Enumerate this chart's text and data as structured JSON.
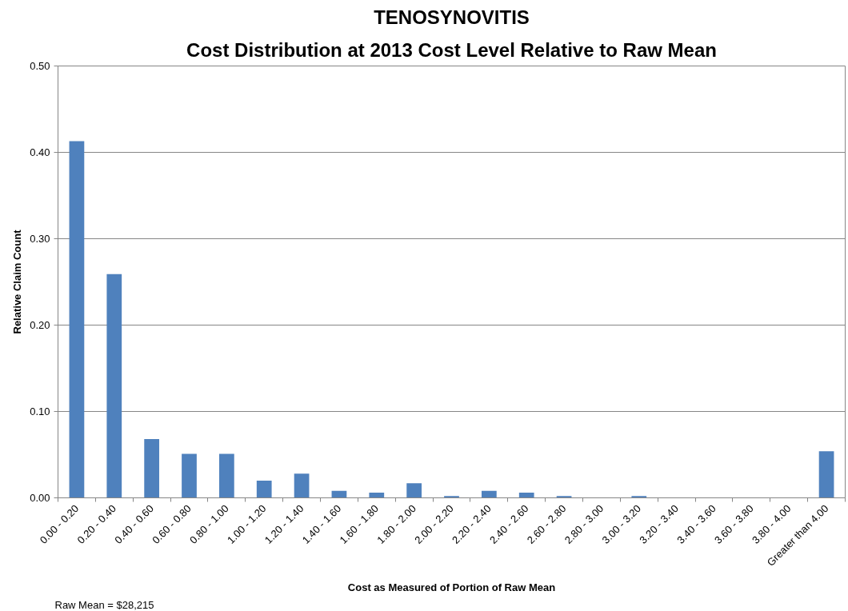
{
  "chart_data": {
    "type": "bar",
    "title": "TENOSYNOVITIS",
    "subtitle": "Cost Distribution at 2013 Cost Level Relative to Raw Mean",
    "xlabel": "Cost as Measured of Portion of Raw Mean",
    "ylabel": "Relative Claim Count",
    "annotations": [
      "Raw Mean = $28,215"
    ],
    "categories": [
      "0.00 - 0.20",
      "0.20 - 0.40",
      "0.40 - 0.60",
      "0.60 - 0.80",
      "0.80 - 1.00",
      "1.00 - 1.20",
      "1.20 - 1.40",
      "1.40 - 1.60",
      "1.60 - 1.80",
      "1.80 - 2.00",
      "2.00 - 2.20",
      "2.20 - 2.40",
      "2.40 - 2.60",
      "2.60 - 2.80",
      "2.80 - 3.00",
      "3.00 - 3.20",
      "3.20 - 3.40",
      "3.40 - 3.60",
      "3.60 - 3.80",
      "3.80 - 4.00",
      "Greater than 4.00"
    ],
    "values": [
      0.413,
      0.259,
      0.068,
      0.051,
      0.051,
      0.02,
      0.028,
      0.008,
      0.006,
      0.017,
      0.002,
      0.008,
      0.006,
      0.002,
      0,
      0.002,
      0,
      0,
      0,
      0,
      0.054
    ],
    "color": "#4f81bd",
    "ylim": [
      0,
      0.5
    ],
    "yticks": [
      {
        "value": 0,
        "label": "0.00"
      },
      {
        "value": 0.1,
        "label": "0.10"
      },
      {
        "value": 0.2,
        "label": "0.20"
      },
      {
        "value": 0.3,
        "label": "0.30"
      },
      {
        "value": 0.4,
        "label": "0.40"
      },
      {
        "value": 0.5,
        "label": "0.50"
      }
    ],
    "grid": "y"
  }
}
